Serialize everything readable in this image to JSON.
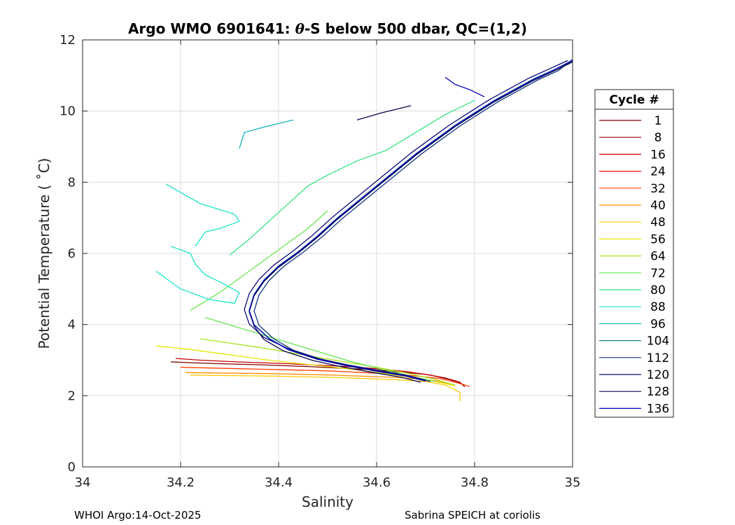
{
  "chart_data": {
    "type": "line",
    "title_prefix": "Argo WMO 6901641: ",
    "title_theta": "θ",
    "title_suffix": "-S below 500 dbar,  QC=(1,2)",
    "xlabel": "Salinity",
    "ylabel": "Potential Temperature ( ˚C)",
    "xlim": [
      34,
      35
    ],
    "ylim": [
      0,
      12
    ],
    "xticks": [
      "34",
      "34.2",
      "34.4",
      "34.6",
      "34.8",
      "35"
    ],
    "yticks": [
      "0",
      "2",
      "4",
      "6",
      "8",
      "10",
      "12"
    ],
    "grid": true,
    "legend": {
      "title": "Cycle #",
      "placement": "outside-right",
      "entries": [
        {
          "label": "1",
          "color": "#800000"
        },
        {
          "label": "8",
          "color": "#a00000"
        },
        {
          "label": "16",
          "color": "#cc0000"
        },
        {
          "label": "24",
          "color": "#e81010"
        },
        {
          "label": "32",
          "color": "#ff4000"
        },
        {
          "label": "40",
          "color": "#ff8c00"
        },
        {
          "label": "48",
          "color": "#ffc800"
        },
        {
          "label": "56",
          "color": "#e6e600"
        },
        {
          "label": "64",
          "color": "#a6e61a"
        },
        {
          "label": "72",
          "color": "#66e64d"
        },
        {
          "label": "80",
          "color": "#33e680"
        },
        {
          "label": "88",
          "color": "#1ae6c8"
        },
        {
          "label": "96",
          "color": "#1ab3b3"
        },
        {
          "label": "104",
          "color": "#137f8c"
        },
        {
          "label": "112",
          "color": "#0d3380"
        },
        {
          "label": "120",
          "color": "#0a0a7a"
        },
        {
          "label": "128",
          "color": "#06064d"
        },
        {
          "label": "136",
          "color": "#0000b3"
        }
      ]
    },
    "series": [
      {
        "color": "#800000",
        "x": [
          34.18,
          34.22,
          34.28,
          34.34,
          34.4,
          34.46,
          34.52,
          34.58,
          34.64,
          34.7,
          34.74,
          34.77,
          34.78
        ],
        "y": [
          2.95,
          2.93,
          2.9,
          2.88,
          2.85,
          2.82,
          2.78,
          2.74,
          2.68,
          2.6,
          2.5,
          2.38,
          2.25
        ]
      },
      {
        "color": "#cc0000",
        "x": [
          34.19,
          34.24,
          34.3,
          34.36,
          34.42,
          34.48,
          34.54,
          34.6,
          34.66,
          34.71,
          34.75,
          34.78
        ],
        "y": [
          3.05,
          3.0,
          2.96,
          2.93,
          2.9,
          2.86,
          2.82,
          2.76,
          2.68,
          2.58,
          2.45,
          2.3
        ]
      },
      {
        "color": "#ff4000",
        "x": [
          34.2,
          34.26,
          34.32,
          34.38,
          34.44,
          34.5,
          34.56,
          34.62,
          34.68,
          34.73,
          34.76,
          34.79
        ],
        "y": [
          2.8,
          2.78,
          2.76,
          2.74,
          2.72,
          2.7,
          2.66,
          2.62,
          2.56,
          2.48,
          2.38,
          2.26
        ]
      },
      {
        "color": "#ff8c00",
        "x": [
          34.21,
          34.27,
          34.33,
          34.39,
          34.45,
          34.51,
          34.57,
          34.63,
          34.69,
          34.73,
          34.76
        ],
        "y": [
          2.65,
          2.64,
          2.63,
          2.62,
          2.6,
          2.58,
          2.55,
          2.52,
          2.47,
          2.4,
          2.28
        ]
      },
      {
        "color": "#ffc800",
        "x": [
          34.22,
          34.28,
          34.34,
          34.4,
          34.46,
          34.52,
          34.58,
          34.64,
          34.7,
          34.74,
          34.77,
          34.77
        ],
        "y": [
          2.58,
          2.57,
          2.56,
          2.55,
          2.53,
          2.51,
          2.48,
          2.45,
          2.4,
          2.3,
          2.1,
          1.85
        ]
      },
      {
        "color": "#e6e600",
        "x": [
          34.15,
          34.22,
          34.3,
          34.38,
          34.46,
          34.54,
          34.62,
          34.7,
          34.76
        ],
        "y": [
          3.4,
          3.3,
          3.15,
          3.0,
          2.88,
          2.76,
          2.62,
          2.46,
          2.28
        ]
      },
      {
        "color": "#a6e61a",
        "x": [
          34.24,
          34.3,
          34.36,
          34.42,
          34.48,
          34.54,
          34.6,
          34.66,
          34.72,
          34.76
        ],
        "y": [
          3.6,
          3.48,
          3.36,
          3.22,
          3.08,
          2.94,
          2.8,
          2.64,
          2.46,
          2.3
        ]
      },
      {
        "color": "#66e64d",
        "x": [
          34.22,
          34.28,
          34.34,
          34.4,
          34.46,
          34.5
        ],
        "y": [
          4.4,
          4.9,
          5.5,
          6.1,
          6.7,
          7.2
        ]
      },
      {
        "color": "#66e64d",
        "x": [
          34.25,
          34.31,
          34.37,
          34.43,
          34.49,
          34.55,
          34.61,
          34.67,
          34.72
        ],
        "y": [
          4.2,
          3.95,
          3.7,
          3.45,
          3.2,
          2.95,
          2.75,
          2.55,
          2.4
        ]
      },
      {
        "color": "#33e680",
        "x": [
          34.3,
          34.34,
          34.38,
          34.42,
          34.46,
          34.5,
          34.56,
          34.62,
          34.68,
          34.74,
          34.8
        ],
        "y": [
          5.95,
          6.4,
          6.9,
          7.4,
          7.9,
          8.2,
          8.6,
          8.9,
          9.4,
          9.9,
          10.3
        ]
      },
      {
        "color": "#1ae6c8",
        "x": [
          34.15,
          34.2,
          34.26,
          34.31,
          34.32,
          34.28,
          34.25,
          34.23,
          34.22,
          34.18
        ],
        "y": [
          5.5,
          5.0,
          4.7,
          4.6,
          4.9,
          5.2,
          5.4,
          5.7,
          6.0,
          6.2
        ]
      },
      {
        "color": "#1ae6c8",
        "x": [
          34.17,
          34.24,
          34.31,
          34.32,
          34.28,
          34.25,
          34.23
        ],
        "y": [
          7.95,
          7.4,
          7.1,
          6.9,
          6.7,
          6.6,
          6.2
        ]
      },
      {
        "color": "#1ab3b3",
        "x": [
          34.32,
          34.33,
          34.37,
          34.43
        ],
        "y": [
          8.95,
          9.4,
          9.55,
          9.75
        ]
      },
      {
        "color": "#137f8c",
        "x": [
          34.7,
          34.66,
          34.6,
          34.54,
          34.48,
          34.42,
          34.38,
          34.35,
          34.34,
          34.35,
          34.37,
          34.4,
          34.44,
          34.48,
          34.52,
          34.56,
          34.6,
          34.64,
          34.68,
          34.72,
          34.76,
          34.8,
          34.84,
          34.88,
          34.92,
          34.96,
          35.0
        ],
        "y": [
          2.42,
          2.56,
          2.7,
          2.85,
          3.03,
          3.3,
          3.62,
          4.0,
          4.4,
          4.85,
          5.25,
          5.65,
          6.05,
          6.5,
          7.0,
          7.45,
          7.9,
          8.35,
          8.8,
          9.2,
          9.6,
          9.95,
          10.3,
          10.6,
          10.9,
          11.15,
          11.4
        ]
      },
      {
        "color": "#0d3380",
        "x": [
          34.71,
          34.67,
          34.61,
          34.55,
          34.49,
          34.43,
          34.39,
          34.36,
          34.35,
          34.36,
          34.38,
          34.41,
          34.45,
          34.49,
          34.53,
          34.57,
          34.61,
          34.65,
          34.69,
          34.73,
          34.77,
          34.81,
          34.85,
          34.89,
          34.93,
          34.97,
          35.0
        ],
        "y": [
          2.4,
          2.54,
          2.68,
          2.83,
          3.01,
          3.28,
          3.6,
          3.98,
          4.38,
          4.83,
          5.23,
          5.63,
          6.03,
          6.48,
          6.98,
          7.43,
          7.88,
          8.33,
          8.78,
          9.18,
          9.58,
          9.93,
          10.28,
          10.58,
          10.88,
          11.13,
          11.45
        ]
      },
      {
        "color": "#0a0a7a",
        "x": [
          34.7,
          34.66,
          34.6,
          34.54,
          34.48,
          34.42,
          34.37,
          34.34,
          34.33,
          34.34,
          34.36,
          34.39,
          34.43,
          34.47,
          34.51,
          34.55,
          34.59,
          34.63,
          34.67,
          34.71,
          34.75,
          34.79,
          34.83,
          34.87,
          34.91,
          34.95,
          34.99
        ],
        "y": [
          2.44,
          2.58,
          2.72,
          2.87,
          3.05,
          3.32,
          3.64,
          4.02,
          4.42,
          4.87,
          5.27,
          5.67,
          6.07,
          6.52,
          7.02,
          7.47,
          7.92,
          8.37,
          8.82,
          9.22,
          9.62,
          9.97,
          10.32,
          10.62,
          10.92,
          11.17,
          11.42
        ]
      },
      {
        "color": "#06064d",
        "x": [
          34.69,
          34.65,
          34.59,
          34.53,
          34.47,
          34.41,
          34.37,
          34.35,
          34.34,
          34.35,
          34.37,
          34.4,
          34.44,
          34.48,
          34.52,
          34.56,
          34.6,
          34.64,
          34.68,
          34.72,
          34.76,
          34.8,
          34.84,
          34.88,
          34.92,
          34.96,
          35.0
        ],
        "y": [
          2.38,
          2.52,
          2.66,
          2.81,
          2.99,
          3.26,
          3.58,
          3.96,
          4.36,
          4.81,
          5.21,
          5.61,
          6.01,
          6.46,
          6.96,
          7.41,
          7.86,
          8.31,
          8.76,
          9.16,
          9.56,
          9.91,
          10.26,
          10.56,
          10.86,
          11.11,
          11.38
        ]
      },
      {
        "color": "#0000b3",
        "x": [
          34.7,
          34.66,
          34.6,
          34.54,
          34.48,
          34.42,
          34.38,
          34.35,
          34.34,
          34.35,
          34.37,
          34.4,
          34.44,
          34.48,
          34.52,
          34.56,
          34.6,
          34.64,
          34.68,
          34.72,
          34.76,
          34.8,
          34.84,
          34.88,
          34.92,
          34.96,
          35.0
        ],
        "y": [
          2.41,
          2.55,
          2.69,
          2.84,
          3.02,
          3.29,
          3.61,
          3.99,
          4.39,
          4.84,
          5.24,
          5.64,
          6.04,
          6.49,
          6.99,
          7.44,
          7.89,
          8.34,
          8.79,
          9.19,
          9.59,
          9.94,
          10.29,
          10.59,
          10.89,
          11.14,
          11.43
        ]
      },
      {
        "color": "#0000b3",
        "x": [
          34.82,
          34.79,
          34.76,
          34.74
        ],
        "y": [
          10.4,
          10.6,
          10.75,
          10.95
        ]
      },
      {
        "color": "#06064d",
        "x": [
          34.56,
          34.61,
          34.67
        ],
        "y": [
          9.75,
          9.95,
          10.15
        ]
      }
    ]
  },
  "footer": {
    "left": "WHOI Argo:14-Oct-2025",
    "right": "Sabrina SPEICH at coriolis"
  }
}
